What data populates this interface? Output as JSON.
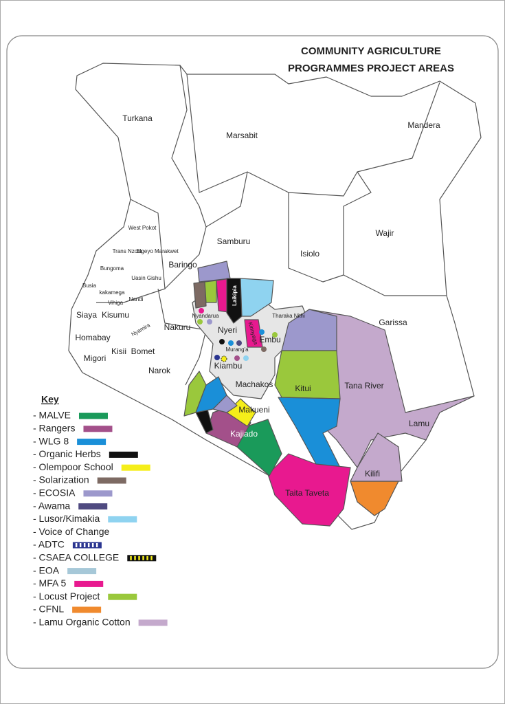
{
  "header": {
    "title_lines": [
      "COMMUNITY AGRICULTURE",
      "PROGRAMMES PROJECT AREAS"
    ]
  },
  "counties": [
    "Turkana",
    "Marsabit",
    "Mandera",
    "Wajir",
    "Samburu",
    "Isiolo",
    "Garissa",
    "Tana River",
    "Lamu",
    "Kilifi",
    "Taita Taveta",
    "Makueni",
    "Kajiado",
    "Machakos",
    "Kitui",
    "Nyeri",
    "Embu",
    "Laikipia",
    "Kirinyaga",
    "Nyandarua",
    "Tharaka Nithi",
    "Murang'a",
    "Kiambu",
    "Nakuru",
    "Narok",
    "Baringo",
    "West Pokot",
    "Trans Nzoia",
    "Elgeyo Marakwet",
    "Bungoma",
    "Uasin Gishu",
    "Busia",
    "kakamega",
    "Vihiga",
    "Nandi",
    "Siaya",
    "Kisumu",
    "Nyamira",
    "Homabay",
    "Kisii",
    "Bomet",
    "Migori"
  ],
  "key": {
    "title": "Key",
    "items": [
      {
        "label": "- MALVE",
        "color": "#1a9a5a"
      },
      {
        "label": "- Rangers",
        "color": "#a3508a"
      },
      {
        "label": "- WLG 8",
        "color": "#1a8fd8"
      },
      {
        "label": "- Organic Herbs",
        "color": "#111111"
      },
      {
        "label": "- Olempoor School",
        "color": "#f5ee1a"
      },
      {
        "label": "- Solarization",
        "color": "#7d6a63"
      },
      {
        "label": "- ECOSIA",
        "color": "#9c98cc"
      },
      {
        "label": "- Awama",
        "color": "#4f4a80"
      },
      {
        "label": "- Lusor/Kimakia",
        "color": "#8fd3f0"
      },
      {
        "label": "- Voice of Change"
      },
      {
        "label": "- ADTC",
        "color": "#2a3590",
        "stripe_color": "#ffffff"
      },
      {
        "label": "- CSAEA COLLEGE",
        "color": "#111111",
        "stripe_color": "#f5ee1a"
      },
      {
        "label": "- EOA",
        "color": "#a6c8d8"
      },
      {
        "label": "- MFA 5",
        "color": "#e8198f"
      },
      {
        "label": "- Locust Project",
        "color": "#9ac83c"
      },
      {
        "label": "- CFNL",
        "color": "#f08a2e"
      },
      {
        "label": "- Lamu Organic Cotton",
        "color": "#c4a9cc"
      }
    ]
  }
}
